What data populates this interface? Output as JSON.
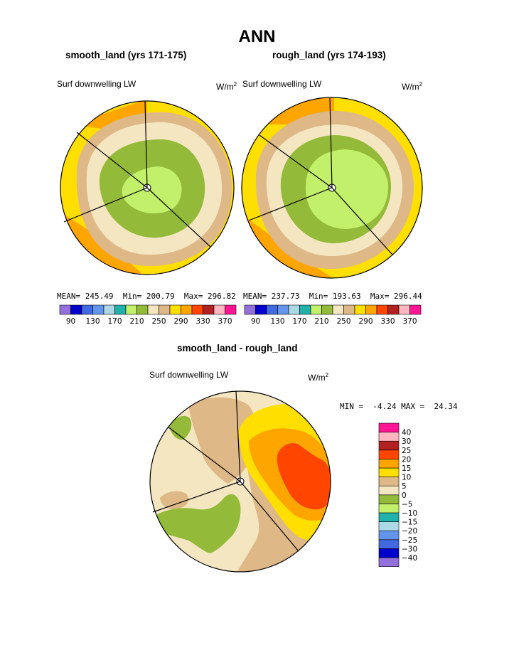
{
  "title": "ANN",
  "colors": {
    "upper_palette": [
      "#9370DB",
      "#0000CD",
      "#4169E1",
      "#6495ED",
      "#ADD8E6",
      "#20B2AA",
      "#C2F06A",
      "#94BA3A",
      "#F5E6C2",
      "#DEB887",
      "#FFDF00",
      "#FFA500",
      "#FF4500",
      "#B22222",
      "#FFB6C1",
      "#FF1493"
    ],
    "diff_palette": [
      "#9370DB",
      "#0000CD",
      "#4169E1",
      "#6495ED",
      "#ADD8E6",
      "#20B2AA",
      "#C2F06A",
      "#94BA3A",
      "#F5E6C2",
      "#DEB887",
      "#FFDF00",
      "#FFA500",
      "#FF4500",
      "#B22222",
      "#FFB6C1",
      "#FF1493"
    ]
  },
  "panels": [
    {
      "id": "smooth",
      "title": "smooth_land (yrs 171-175)",
      "variable": "Surf downwelling LW",
      "units": "W/m",
      "units_exp": "2",
      "stats": {
        "mean_label": "MEAN=",
        "mean": "245.49",
        "min_label": "Min=",
        "min": "200.79",
        "max_label": "Max=",
        "max": "296.82"
      }
    },
    {
      "id": "rough",
      "title": "rough_land (yrs 174-193)",
      "variable": "Surf downwelling LW",
      "units": "W/m",
      "units_exp": "2",
      "stats": {
        "mean_label": "MEAN=",
        "mean": "237.73",
        "min_label": "Min=",
        "min": "193.63",
        "max_label": "Max=",
        "max": "296.44"
      }
    }
  ],
  "difference": {
    "title": "smooth_land - rough_land",
    "variable": "Surf downwelling LW",
    "units": "W/m",
    "units_exp": "2",
    "min_label": "MIN =",
    "min": "-4.24",
    "max_label": "MAX =",
    "max": "24.34"
  },
  "chart_data": [
    {
      "type": "heatmap",
      "projection": "polar stereographic",
      "title": "smooth_land (yrs 171-175)",
      "variable": "Surf downwelling LW",
      "units": "W/m2",
      "mean": 245.49,
      "min": 200.79,
      "max": 296.82,
      "contour_levels": [
        90,
        110,
        130,
        150,
        170,
        190,
        210,
        230,
        250,
        270,
        290,
        310,
        330,
        350,
        370
      ],
      "colorbar_tick_labels": [
        "90",
        "130",
        "170",
        "210",
        "250",
        "290",
        "330",
        "370"
      ],
      "approx_zones": [
        {
          "range": [
            290,
            310
          ],
          "region": "outer edge, lower latitudes"
        },
        {
          "range": [
            270,
            290
          ],
          "region": "outer ring"
        },
        {
          "range": [
            250,
            270
          ],
          "region": "second ring"
        },
        {
          "range": [
            230,
            250
          ],
          "region": "third ring"
        },
        {
          "range": [
            210,
            230
          ],
          "region": "inner ring"
        },
        {
          "range": [
            190,
            210
          ],
          "region": "pole"
        }
      ]
    },
    {
      "type": "heatmap",
      "projection": "polar stereographic",
      "title": "rough_land (yrs 174-193)",
      "variable": "Surf downwelling LW",
      "units": "W/m2",
      "mean": 237.73,
      "min": 193.63,
      "max": 296.44,
      "contour_levels": [
        90,
        110,
        130,
        150,
        170,
        190,
        210,
        230,
        250,
        270,
        290,
        310,
        330,
        350,
        370
      ],
      "colorbar_tick_labels": [
        "90",
        "130",
        "170",
        "210",
        "250",
        "290",
        "330",
        "370"
      ],
      "approx_zones": [
        {
          "range": [
            290,
            310
          ],
          "region": "outer edge, lower latitudes"
        },
        {
          "range": [
            270,
            290
          ],
          "region": "outer ring"
        },
        {
          "range": [
            250,
            270
          ],
          "region": "second ring"
        },
        {
          "range": [
            230,
            250
          ],
          "region": "third ring"
        },
        {
          "range": [
            210,
            230
          ],
          "region": "inner ring"
        },
        {
          "range": [
            190,
            210
          ],
          "region": "pole, large area"
        }
      ]
    },
    {
      "type": "heatmap",
      "projection": "polar stereographic",
      "title": "smooth_land - rough_land",
      "variable": "Surf downwelling LW",
      "units": "W/m2",
      "min": -4.24,
      "max": 24.34,
      "contour_levels": [
        -40,
        -30,
        -25,
        -20,
        -15,
        -10,
        -5,
        0,
        5,
        10,
        15,
        20,
        25,
        30,
        40
      ],
      "colorbar_tick_labels": [
        "40",
        "30",
        "25",
        "20",
        "15",
        "10",
        "5",
        "0",
        "−5",
        "−10",
        "−15",
        "−20",
        "−25",
        "−30",
        "−40"
      ],
      "approx_zones": [
        {
          "range": [
            20,
            25
          ],
          "region": "east sector core"
        },
        {
          "range": [
            15,
            20
          ],
          "region": "east sector"
        },
        {
          "range": [
            10,
            15
          ],
          "region": "north-east sector"
        },
        {
          "range": [
            5,
            10
          ],
          "region": "scattered patches"
        },
        {
          "range": [
            0,
            5
          ],
          "region": "west and south"
        },
        {
          "range": [
            -5,
            0
          ],
          "region": "south-west patch"
        }
      ]
    }
  ]
}
